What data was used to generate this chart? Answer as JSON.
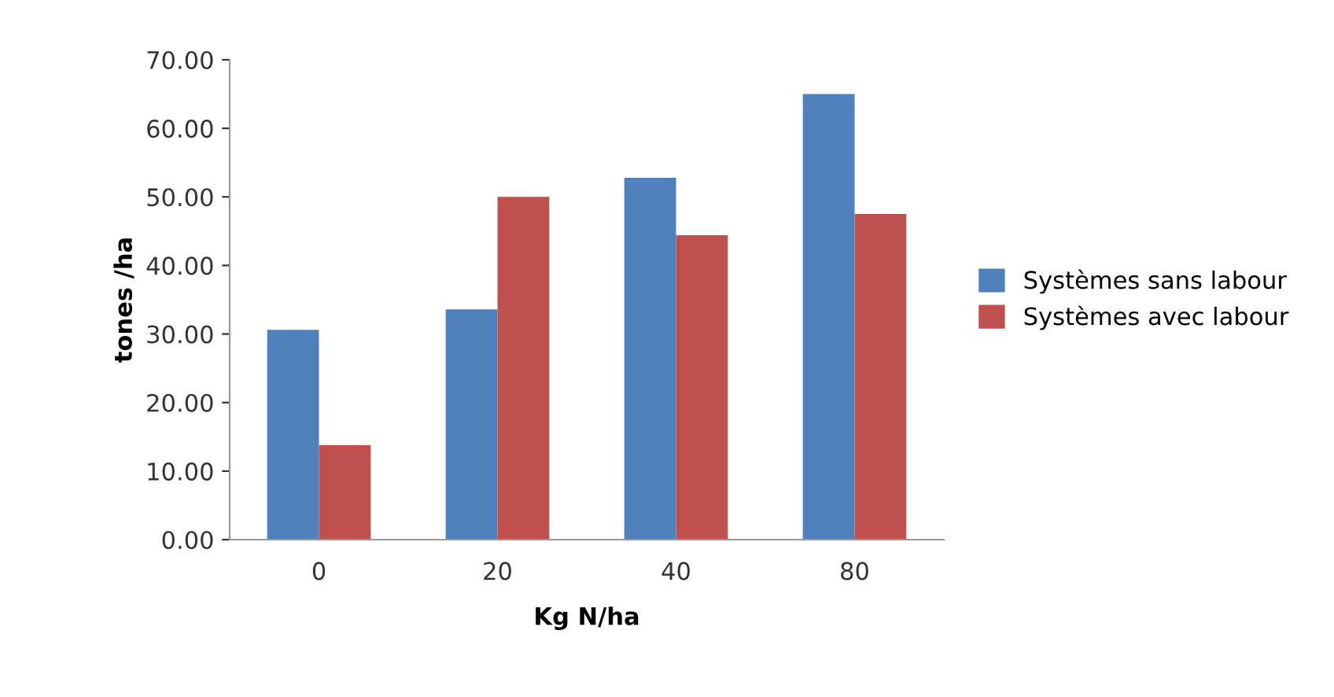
{
  "chart_data": {
    "type": "bar",
    "xlabel": "Kg N/ha",
    "ylabel": "tones /ha",
    "categories": [
      "0",
      "20",
      "40",
      "80"
    ],
    "series": [
      {
        "name": "Systèmes sans labour",
        "color": "#4f81bd",
        "values": [
          30.6,
          33.6,
          52.8,
          65.0
        ]
      },
      {
        "name": "Systèmes avec labour",
        "color": "#c0504d",
        "values": [
          13.8,
          50.0,
          44.4,
          47.5
        ]
      }
    ],
    "ylim": [
      0,
      70
    ],
    "yticks": [
      {
        "value": 0,
        "label": "0.00"
      },
      {
        "value": 10,
        "label": "10.00"
      },
      {
        "value": 20,
        "label": "20.00"
      },
      {
        "value": 30,
        "label": "30.00"
      },
      {
        "value": 40,
        "label": "40.00"
      },
      {
        "value": 50,
        "label": "50.00"
      },
      {
        "value": 60,
        "label": "60.00"
      },
      {
        "value": 70,
        "label": "70.00"
      }
    ],
    "grid": false,
    "legend": "right"
  }
}
